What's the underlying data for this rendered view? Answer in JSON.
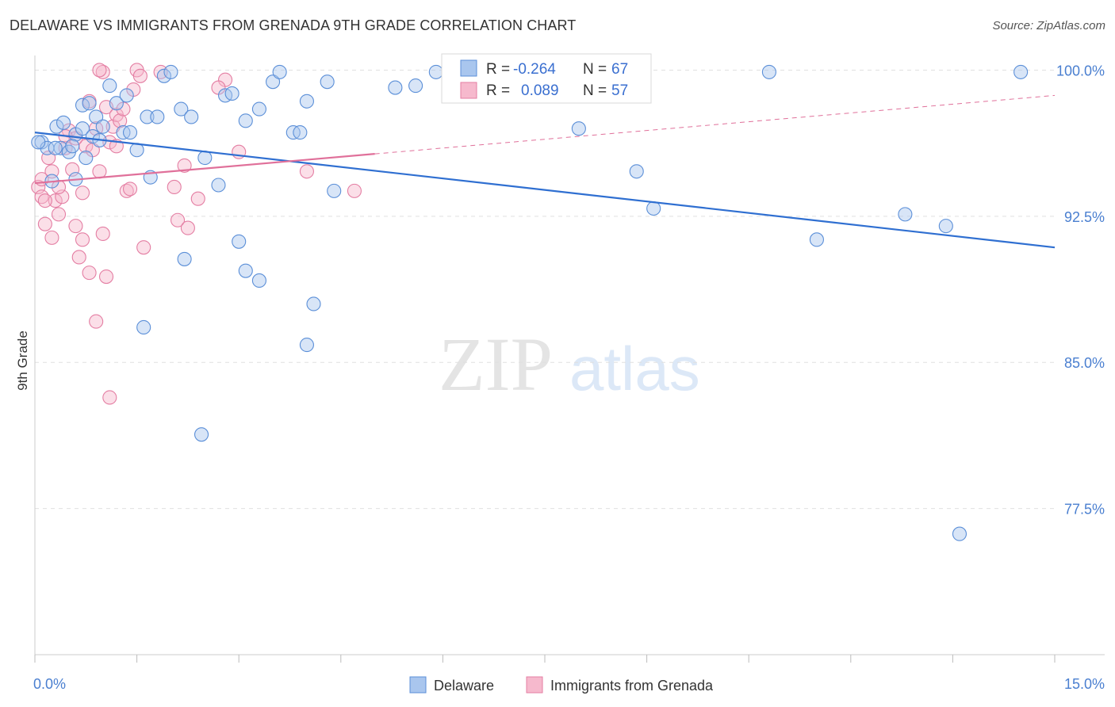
{
  "title": "DELAWARE VS IMMIGRANTS FROM GRENADA 9TH GRADE CORRELATION CHART",
  "source": "Source: ZipAtlas.com",
  "watermark": {
    "zip": "ZIP",
    "atlas": "atlas"
  },
  "colors": {
    "blue_fill": "#a9c6ee",
    "blue_stroke": "#5b8fd8",
    "blue_line": "#2f6fd1",
    "pink_fill": "#f6b9cd",
    "pink_stroke": "#e47ea3",
    "pink_line": "#e0709a",
    "tick_text": "#4a7fd0",
    "grid": "#e0e0e0"
  },
  "legend": {
    "r_label": "R =",
    "n_label": "N =",
    "rows": [
      {
        "r": "-0.264",
        "n": "67",
        "swatch": "blue"
      },
      {
        "r": "0.089",
        "n": "57",
        "swatch": "pink"
      }
    ]
  },
  "chart_data": {
    "type": "scatter",
    "xlabel": "",
    "ylabel": "9th Grade",
    "xlim": [
      0,
      15
    ],
    "ylim": [
      70.0,
      100.75
    ],
    "x_tick_labels": [
      {
        "value": 0,
        "label": "0.0%"
      },
      {
        "value": 15,
        "label": "15.0%"
      }
    ],
    "y_tick_labels": [
      {
        "value": 100.0,
        "label": "100.0%"
      },
      {
        "value": 92.5,
        "label": "92.5%"
      },
      {
        "value": 85.0,
        "label": "85.0%"
      },
      {
        "value": 77.5,
        "label": "77.5%"
      }
    ],
    "series": [
      {
        "name": "Delaware",
        "color": "blue",
        "trend": {
          "x0": 0.0,
          "y0": 96.8,
          "x1": 15.0,
          "y1": 90.9,
          "dashed_from": null
        },
        "points": [
          [
            0.1,
            96.3
          ],
          [
            0.18,
            96.0
          ],
          [
            0.25,
            94.3
          ],
          [
            0.32,
            97.1
          ],
          [
            0.38,
            96.0
          ],
          [
            0.42,
            97.3
          ],
          [
            0.5,
            95.8
          ],
          [
            0.6,
            96.7
          ],
          [
            0.7,
            97.0
          ],
          [
            0.7,
            98.2
          ],
          [
            0.75,
            95.5
          ],
          [
            0.8,
            98.3
          ],
          [
            0.85,
            96.6
          ],
          [
            0.9,
            97.6
          ],
          [
            1.0,
            97.1
          ],
          [
            1.2,
            98.3
          ],
          [
            1.1,
            99.2
          ],
          [
            1.3,
            96.8
          ],
          [
            1.35,
            98.7
          ],
          [
            1.4,
            96.8
          ],
          [
            1.5,
            95.9
          ],
          [
            1.65,
            97.6
          ],
          [
            1.8,
            97.6
          ],
          [
            1.9,
            99.7
          ],
          [
            2.0,
            99.9
          ],
          [
            2.15,
            98.0
          ],
          [
            2.3,
            97.6
          ],
          [
            2.5,
            95.5
          ],
          [
            2.7,
            94.1
          ],
          [
            2.8,
            98.7
          ],
          [
            2.9,
            98.8
          ],
          [
            3.1,
            97.4
          ],
          [
            3.3,
            98.0
          ],
          [
            3.5,
            99.4
          ],
          [
            3.6,
            99.9
          ],
          [
            3.8,
            96.8
          ],
          [
            3.9,
            96.8
          ],
          [
            4.0,
            98.4
          ],
          [
            4.3,
            99.4
          ],
          [
            4.4,
            93.8
          ],
          [
            5.3,
            99.1
          ],
          [
            5.6,
            99.2
          ],
          [
            5.9,
            99.9
          ],
          [
            6.1,
            99.9
          ],
          [
            1.7,
            94.5
          ],
          [
            2.2,
            90.3
          ],
          [
            3.0,
            91.2
          ],
          [
            3.1,
            89.7
          ],
          [
            3.3,
            89.2
          ],
          [
            4.1,
            88.0
          ],
          [
            4.0,
            85.9
          ],
          [
            1.6,
            86.8
          ],
          [
            2.45,
            81.3
          ],
          [
            0.05,
            96.3
          ],
          [
            0.3,
            96.0
          ],
          [
            0.55,
            96.1
          ],
          [
            0.95,
            96.4
          ],
          [
            8.0,
            97.0
          ],
          [
            8.85,
            94.8
          ],
          [
            9.1,
            92.9
          ],
          [
            10.8,
            99.9
          ],
          [
            11.5,
            91.3
          ],
          [
            12.8,
            92.6
          ],
          [
            13.4,
            92.0
          ],
          [
            14.5,
            99.9
          ],
          [
            13.6,
            76.2
          ],
          [
            0.6,
            94.4
          ]
        ]
      },
      {
        "name": "Immigrants from Grenada",
        "color": "pink",
        "trend": {
          "x0": 0.0,
          "y0": 94.2,
          "x1": 15.0,
          "y1": 98.7,
          "dashed_from": 5.0
        },
        "points": [
          [
            0.05,
            94.0
          ],
          [
            0.1,
            93.5
          ],
          [
            0.15,
            92.1
          ],
          [
            0.2,
            95.5
          ],
          [
            0.25,
            94.8
          ],
          [
            0.3,
            93.3
          ],
          [
            0.35,
            92.6
          ],
          [
            0.4,
            93.5
          ],
          [
            0.45,
            96.0
          ],
          [
            0.5,
            96.9
          ],
          [
            0.55,
            94.9
          ],
          [
            0.6,
            92.0
          ],
          [
            0.65,
            90.4
          ],
          [
            0.7,
            91.3
          ],
          [
            0.75,
            96.1
          ],
          [
            0.8,
            89.6
          ],
          [
            0.85,
            95.9
          ],
          [
            0.9,
            97.0
          ],
          [
            0.95,
            94.8
          ],
          [
            1.0,
            91.6
          ],
          [
            1.05,
            98.1
          ],
          [
            1.1,
            96.3
          ],
          [
            1.15,
            97.1
          ],
          [
            1.2,
            97.7
          ],
          [
            1.25,
            97.4
          ],
          [
            1.3,
            98.0
          ],
          [
            1.35,
            93.8
          ],
          [
            1.4,
            93.9
          ],
          [
            1.5,
            100.0
          ],
          [
            1.6,
            90.9
          ],
          [
            0.8,
            98.4
          ],
          [
            0.6,
            96.5
          ],
          [
            1.0,
            99.9
          ],
          [
            1.55,
            99.7
          ],
          [
            0.95,
            100.0
          ],
          [
            1.85,
            99.9
          ],
          [
            2.1,
            92.3
          ],
          [
            2.25,
            91.9
          ],
          [
            2.2,
            95.1
          ],
          [
            2.4,
            93.4
          ],
          [
            2.8,
            99.5
          ],
          [
            2.7,
            99.1
          ],
          [
            3.0,
            95.8
          ],
          [
            4.0,
            94.8
          ],
          [
            4.7,
            93.8
          ],
          [
            0.1,
            94.4
          ],
          [
            0.15,
            93.3
          ],
          [
            0.35,
            94.0
          ],
          [
            0.9,
            87.1
          ],
          [
            1.05,
            89.4
          ],
          [
            1.1,
            83.2
          ],
          [
            0.25,
            91.4
          ],
          [
            0.45,
            96.6
          ],
          [
            0.7,
            93.7
          ],
          [
            1.2,
            96.1
          ],
          [
            2.05,
            94.0
          ],
          [
            1.45,
            99.0
          ]
        ]
      }
    ]
  },
  "bottom_legend": [
    {
      "label": "Delaware",
      "swatch": "blue"
    },
    {
      "label": "Immigrants from Grenada",
      "swatch": "pink"
    }
  ]
}
